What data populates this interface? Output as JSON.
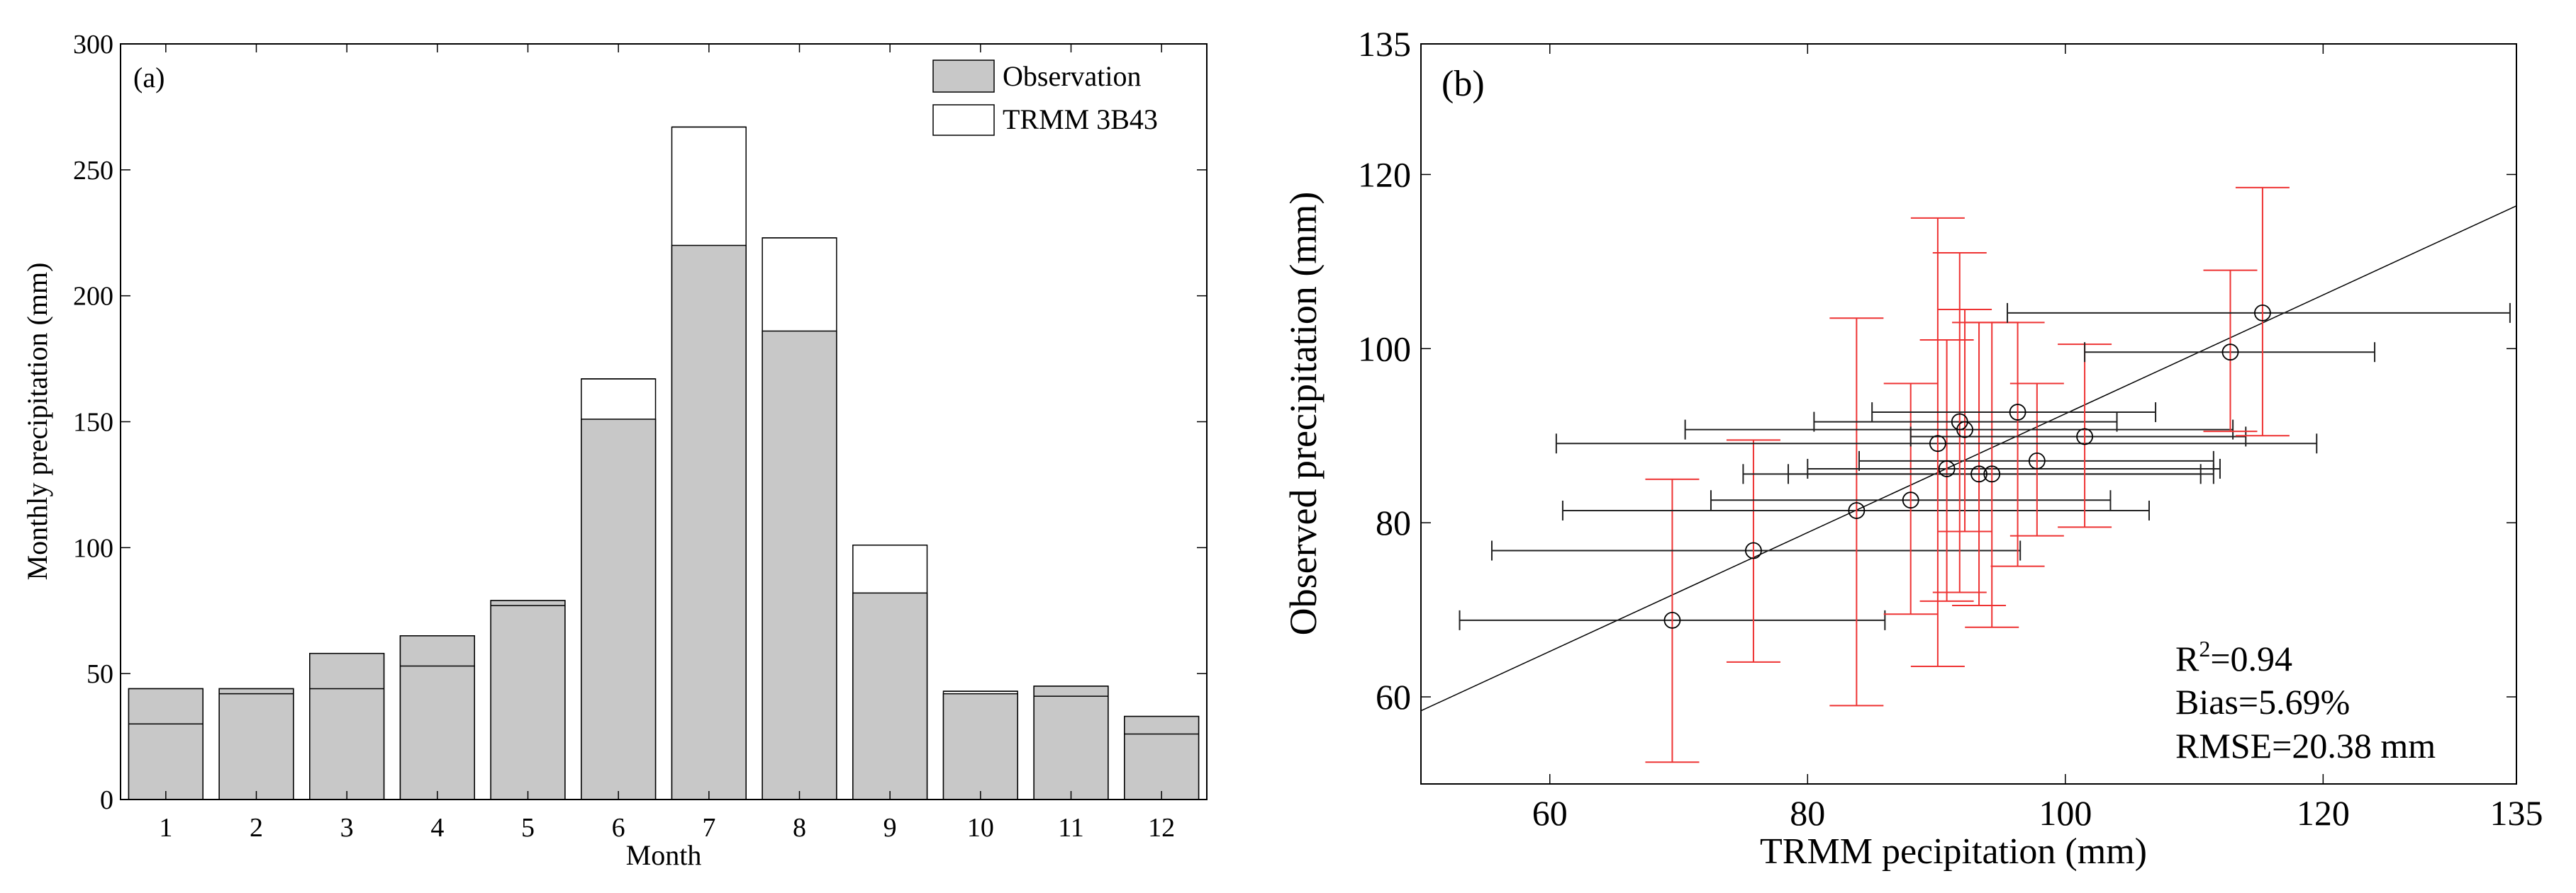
{
  "chart_data": [
    {
      "type": "bar",
      "panel_label": "(a)",
      "xlabel": "Month",
      "ylabel": "Monthly precipitation (mm)",
      "categories": [
        "1",
        "2",
        "3",
        "4",
        "5",
        "6",
        "7",
        "8",
        "9",
        "10",
        "11",
        "12"
      ],
      "ylim": [
        0,
        300
      ],
      "yticks": [
        0,
        50,
        100,
        150,
        200,
        250,
        300
      ],
      "legend_position": "top-right",
      "series": [
        {
          "name": "Observation",
          "color": "#c8c8c8",
          "values": [
            44,
            44,
            58,
            65,
            79,
            151,
            220,
            186,
            82,
            42,
            45,
            33
          ]
        },
        {
          "name": "TRMM 3B43",
          "color": "#ffffff",
          "values": [
            30,
            42,
            44,
            53,
            77,
            167,
            267,
            223,
            101,
            43,
            41,
            26
          ]
        }
      ]
    },
    {
      "type": "scatter",
      "panel_label": "(b)",
      "xlabel": "TRMM pecipitation (mm)",
      "ylabel": "Observed precipitation (mm)",
      "xlim": [
        50,
        135
      ],
      "ylim": [
        50,
        135
      ],
      "xticks": [
        60,
        80,
        100,
        120,
        135
      ],
      "yticks": [
        60,
        80,
        100,
        120,
        135
      ],
      "points": [
        {
          "x": 69.5,
          "y": 68.8,
          "xerr": [
            53,
            86
          ],
          "yerr": [
            52.5,
            85
          ]
        },
        {
          "x": 75.8,
          "y": 76.8,
          "xerr": [
            55.5,
            96.5
          ],
          "yerr": [
            64,
            89.5
          ]
        },
        {
          "x": 83.8,
          "y": 81.4,
          "xerr": [
            61,
            106.5
          ],
          "yerr": [
            59,
            103.5
          ]
        },
        {
          "x": 88,
          "y": 82.6,
          "xerr": [
            72.5,
            103.5
          ],
          "yerr": [
            69.5,
            96
          ]
        },
        {
          "x": 90.8,
          "y": 86.2,
          "xerr": [
            80,
            112
          ],
          "yerr": [
            71,
            101
          ]
        },
        {
          "x": 93.3,
          "y": 85.6,
          "xerr": [
            75,
            110.5
          ],
          "yerr": [
            70.5,
            103
          ]
        },
        {
          "x": 94.3,
          "y": 85.6,
          "xerr": [
            78.5,
            111.5
          ],
          "yerr": [
            68,
            103
          ]
        },
        {
          "x": 97.8,
          "y": 87.1,
          "xerr": [
            84,
            111.5
          ],
          "yerr": [
            78.5,
            96
          ]
        },
        {
          "x": 90.1,
          "y": 89.1,
          "xerr": [
            60.5,
            119.5
          ],
          "yerr": [
            63.5,
            115
          ]
        },
        {
          "x": 91.8,
          "y": 91.6,
          "xerr": [
            80.5,
            104
          ],
          "yerr": [
            72,
            111
          ]
        },
        {
          "x": 92.2,
          "y": 90.7,
          "xerr": [
            70.5,
            113
          ],
          "yerr": [
            79,
            104.5
          ]
        },
        {
          "x": 96.3,
          "y": 92.7,
          "xerr": [
            85,
            107
          ],
          "yerr": [
            75,
            103
          ]
        },
        {
          "x": 101.5,
          "y": 89.9,
          "xerr": [
            88,
            114
          ],
          "yerr": [
            79.5,
            100.5
          ]
        },
        {
          "x": 112.8,
          "y": 99.6,
          "xerr": [
            101.5,
            124
          ],
          "yerr": [
            90.5,
            109
          ]
        },
        {
          "x": 115.3,
          "y": 104.1,
          "xerr": [
            95.5,
            134.5
          ],
          "yerr": [
            90,
            118.5
          ]
        }
      ],
      "fit_line": {
        "x": [
          50,
          135
        ],
        "y": [
          58.4,
          116.4
        ]
      },
      "stats": {
        "r2_prefix": "R",
        "r2_sup": "2",
        "r2_value": "=0.94",
        "bias": "Bias=5.69%",
        "rmse": "RMSE=20.38 mm"
      }
    }
  ]
}
